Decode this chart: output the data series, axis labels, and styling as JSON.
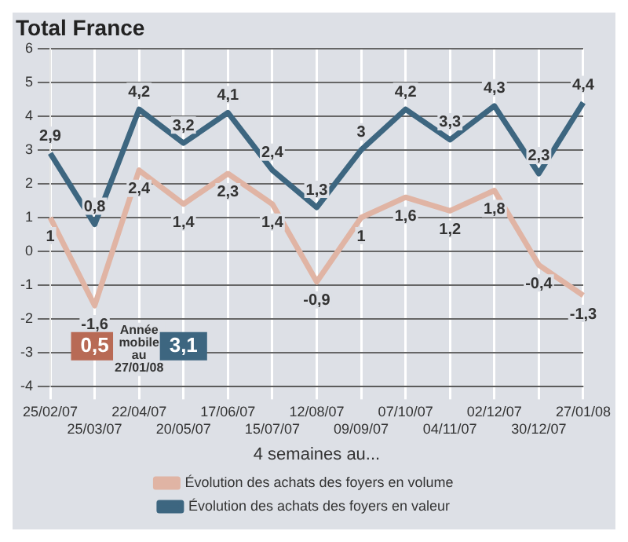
{
  "chart_data": {
    "type": "line",
    "title": "Total France",
    "xlabel": "4 semaines au...",
    "categories": [
      "25/02/07",
      "25/03/07",
      "22/04/07",
      "20/05/07",
      "17/06/07",
      "15/07/07",
      "12/08/07",
      "09/09/07",
      "07/10/07",
      "04/11/07",
      "02/12/07",
      "30/12/07",
      "27/01/08"
    ],
    "series": [
      {
        "name": "Évolution des achats des foyers en volume",
        "color": "#e0b4a4",
        "values": [
          1,
          -1.6,
          2.4,
          1.4,
          2.3,
          1.4,
          -0.9,
          1,
          1.6,
          1.2,
          1.8,
          -0.4,
          -1.3
        ],
        "value_labels": [
          "1",
          "-1,6",
          "2,4",
          "1,4",
          "2,3",
          "1,4",
          "-0,9",
          "1",
          "1,6",
          "1,2",
          "1,8",
          "-0,4",
          "-1,3"
        ]
      },
      {
        "name": "Évolution des achats des foyers en valeur",
        "color": "#3d6680",
        "values": [
          2.9,
          0.8,
          4.2,
          3.2,
          4.1,
          2.4,
          1.3,
          3,
          4.2,
          3.3,
          4.3,
          2.3,
          4.4
        ],
        "value_labels": [
          "2,9",
          "0,8",
          "4,2",
          "3,2",
          "4,1",
          "2,4",
          "1,3",
          "3",
          "4,2",
          "3,3",
          "4,3",
          "2,3",
          "4,4"
        ]
      }
    ],
    "annotations": [
      "0,5",
      "Année mobile au 27/01/08",
      "3,1"
    ],
    "ylim": [
      -4,
      6
    ],
    "yticks": [
      -4,
      -3,
      -2,
      -1,
      0,
      1,
      2,
      3,
      4,
      5,
      6
    ],
    "grid": true,
    "legend": "bottom",
    "marker": "none",
    "line_style": "solid"
  }
}
